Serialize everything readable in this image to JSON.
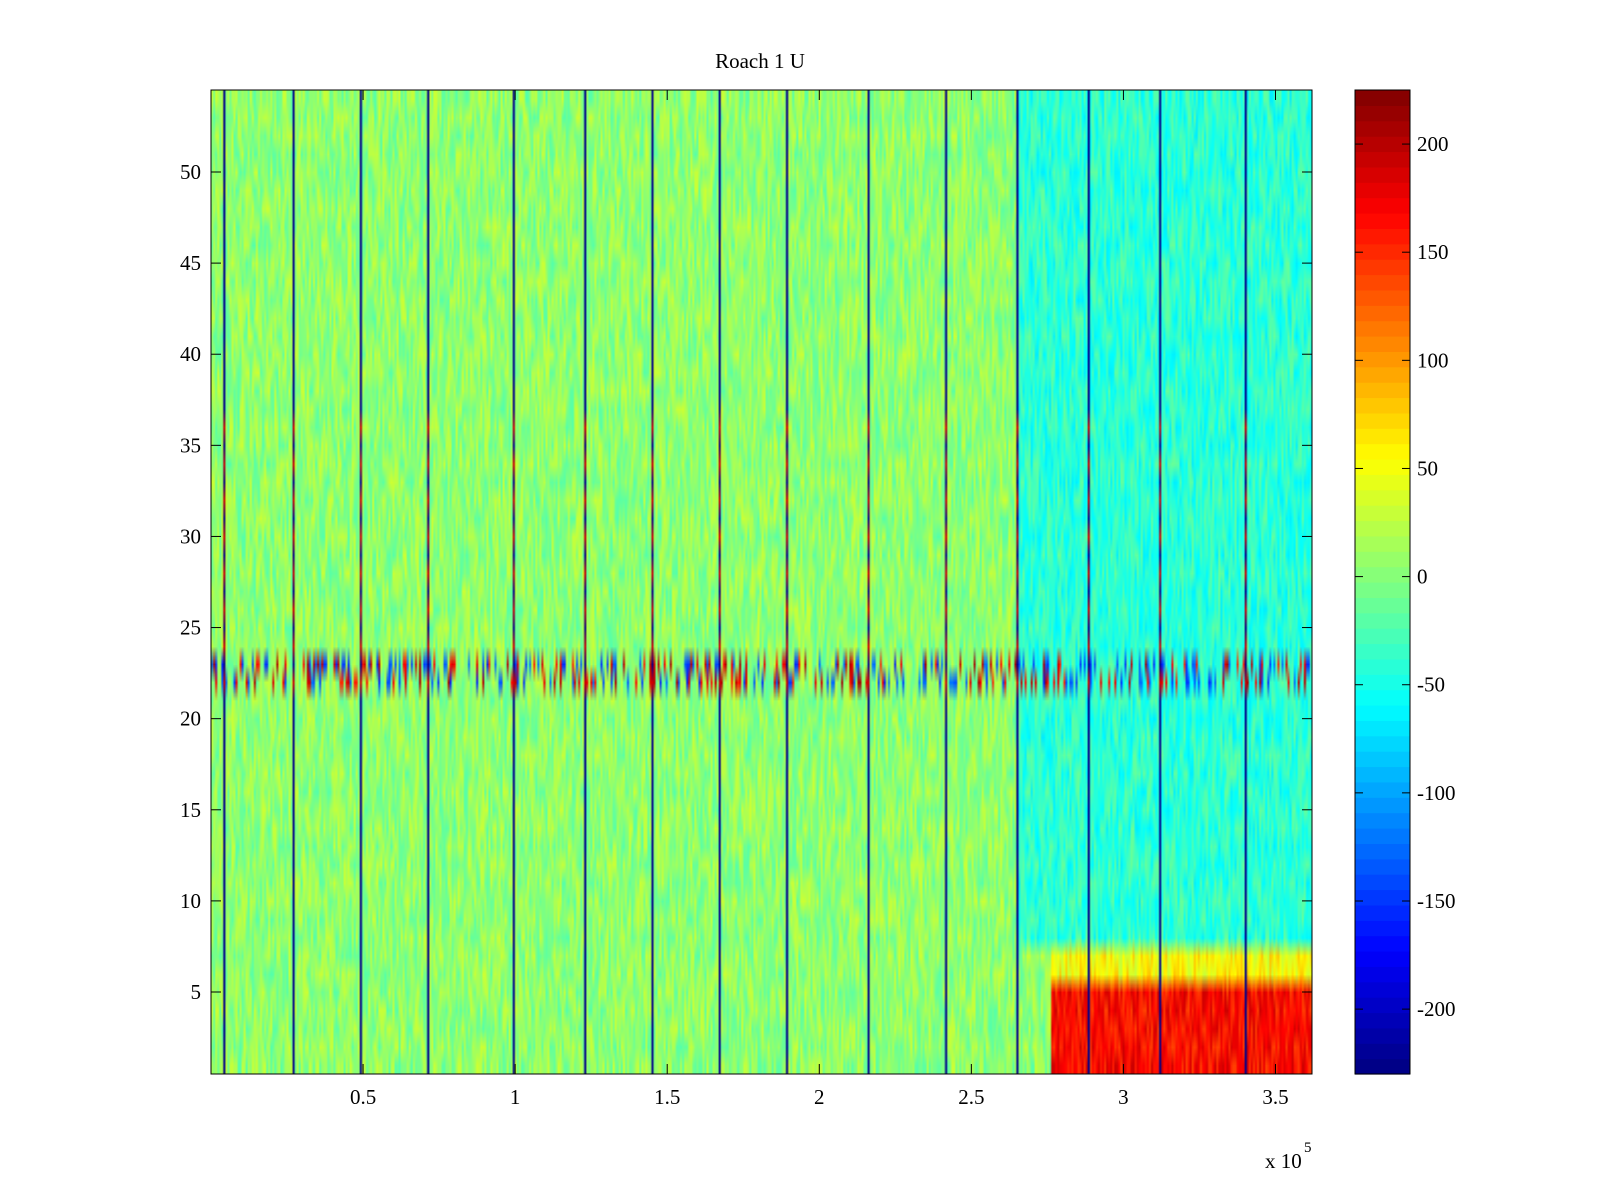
{
  "chart_data": {
    "type": "heatmap",
    "title": "Roach 1 U",
    "xlabel": "",
    "ylabel": "",
    "x_exponent_label": "x 10",
    "x_exponent_power": "5",
    "xlim": [
      0,
      3.62
    ],
    "ylim": [
      0.5,
      54.5
    ],
    "rows": 54,
    "x_ticks": [
      {
        "value": 0.5,
        "label": "0.5"
      },
      {
        "value": 1,
        "label": "1"
      },
      {
        "value": 1.5,
        "label": "1.5"
      },
      {
        "value": 2,
        "label": "2"
      },
      {
        "value": 2.5,
        "label": "2.5"
      },
      {
        "value": 3,
        "label": "3"
      },
      {
        "value": 3.5,
        "label": "3.5"
      }
    ],
    "y_ticks": [
      {
        "value": 5,
        "label": "5"
      },
      {
        "value": 10,
        "label": "10"
      },
      {
        "value": 15,
        "label": "15"
      },
      {
        "value": 20,
        "label": "20"
      },
      {
        "value": 25,
        "label": "25"
      },
      {
        "value": 30,
        "label": "30"
      },
      {
        "value": 35,
        "label": "35"
      },
      {
        "value": 40,
        "label": "40"
      },
      {
        "value": 45,
        "label": "45"
      },
      {
        "value": 50,
        "label": "50"
      }
    ],
    "colorbar": {
      "colormap": "jet",
      "clim": [
        -230,
        225
      ],
      "ticks": [
        {
          "value": 200,
          "label": "200"
        },
        {
          "value": 150,
          "label": "150"
        },
        {
          "value": 100,
          "label": "100"
        },
        {
          "value": 50,
          "label": "50"
        },
        {
          "value": 0,
          "label": "0"
        },
        {
          "value": -50,
          "label": "-50"
        },
        {
          "value": -100,
          "label": "-100"
        },
        {
          "value": -150,
          "label": "-150"
        },
        {
          "value": -200,
          "label": "-200"
        }
      ]
    },
    "event_lines_x": [
      0.04,
      0.27,
      0.49,
      0.71,
      0.99,
      1.23,
      1.45,
      1.67,
      1.89,
      2.16,
      2.41,
      2.65,
      2.88,
      3.12,
      3.4
    ],
    "noisy_band_rows": [
      22,
      23
    ],
    "regions": [
      {
        "description": "baseline",
        "x": [
          0,
          2.65
        ],
        "rows": [
          1,
          54
        ],
        "mean_value": 5
      },
      {
        "description": "late cooler region",
        "x": [
          2.65,
          3.62
        ],
        "rows": [
          8,
          54
        ],
        "mean_value": -40
      },
      {
        "description": "late hot region",
        "x": [
          2.76,
          3.62
        ],
        "rows": [
          1,
          5
        ],
        "mean_value": 165
      },
      {
        "description": "late warm band",
        "x": [
          2.76,
          3.62
        ],
        "rows": [
          6,
          7
        ],
        "mean_value": 55
      }
    ]
  }
}
